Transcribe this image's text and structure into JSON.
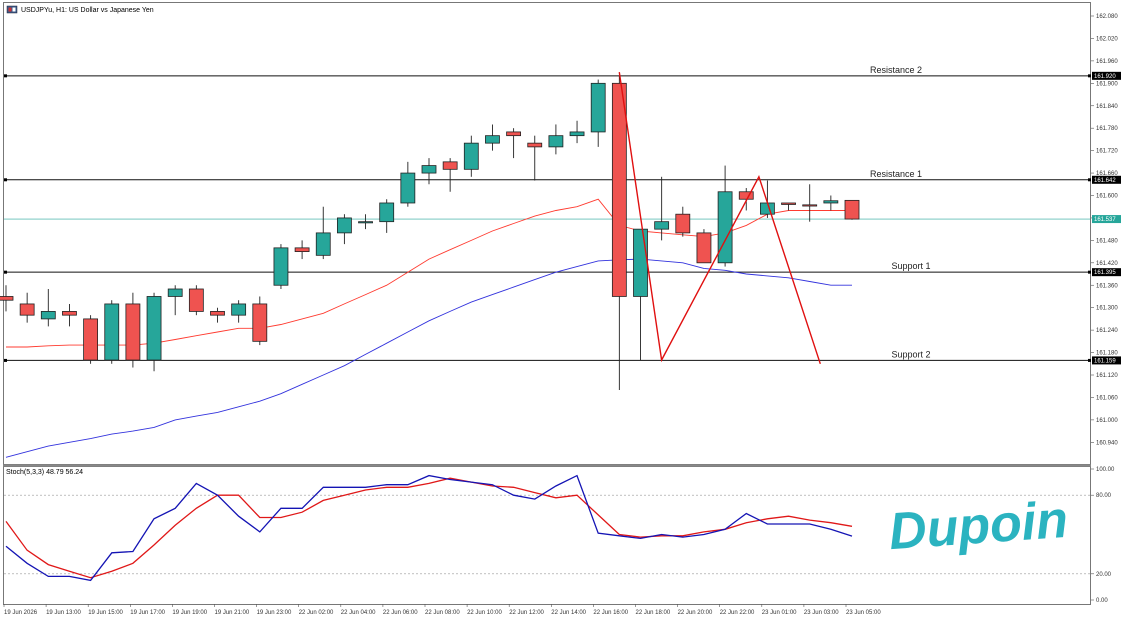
{
  "header": {
    "title": "USDJPYu, H1: US Dollar vs Japanese Yen"
  },
  "stoch": {
    "label": "Stoch(5,3,3) 48.79 56.24"
  },
  "logo": {
    "text": "Dupoin"
  },
  "colors": {
    "bull": "#26a69a",
    "bear": "#ef5350",
    "ma_fast": "#ff3b30",
    "ma_slow": "#3333dd",
    "stoch_main": "#1414b4",
    "stoch_signal": "#e01818",
    "zigzag": "#e01010",
    "logo": "#2bb3c0",
    "current_line": "#26a69a"
  },
  "chart_data": [
    {
      "type": "candlestick",
      "ylim": [
        160.88,
        162.108
      ],
      "price_ticks": [
        "162.080",
        "162.020",
        "161.960",
        "161.900",
        "161.840",
        "161.780",
        "161.720",
        "161.660",
        "161.600",
        "161.540",
        "161.480",
        "161.420",
        "161.360",
        "161.300",
        "161.240",
        "161.180",
        "161.120",
        "161.060",
        "161.000",
        "160.940"
      ],
      "x_labels": [
        "19 Jun 2026",
        "19 Jun 13:00",
        "19 Jun 15:00",
        "19 Jun 17:00",
        "19 Jun 19:00",
        "19 Jun 21:00",
        "19 Jun 23:00",
        "22 Jun 02:00",
        "22 Jun 04:00",
        "22 Jun 06:00",
        "22 Jun 08:00",
        "22 Jun 10:00",
        "22 Jun 12:00",
        "22 Jun 14:00",
        "22 Jun 16:00",
        "22 Jun 18:00",
        "22 Jun 20:00",
        "22 Jun 22:00",
        "23 Jun 01:00",
        "23 Jun 03:00",
        "23 Jun 05:00"
      ],
      "levels": [
        {
          "name": "Resistance 2",
          "price": 161.92,
          "tag": "161.920"
        },
        {
          "name": "Resistance 1",
          "price": 161.642,
          "tag": "161.642"
        },
        {
          "name": "Support 1",
          "price": 161.395,
          "tag": "161.395"
        },
        {
          "name": "Support 2",
          "price": 161.159,
          "tag": "161.159"
        }
      ],
      "current_price": {
        "value": 161.537,
        "tag": "161.537"
      },
      "candles": [
        {
          "o": 161.33,
          "h": 161.36,
          "l": 161.29,
          "c": 161.32
        },
        {
          "o": 161.31,
          "h": 161.34,
          "l": 161.26,
          "c": 161.28
        },
        {
          "o": 161.27,
          "h": 161.35,
          "l": 161.25,
          "c": 161.29
        },
        {
          "o": 161.29,
          "h": 161.31,
          "l": 161.25,
          "c": 161.28
        },
        {
          "o": 161.27,
          "h": 161.28,
          "l": 161.15,
          "c": 161.16
        },
        {
          "o": 161.16,
          "h": 161.32,
          "l": 161.15,
          "c": 161.31
        },
        {
          "o": 161.31,
          "h": 161.34,
          "l": 161.14,
          "c": 161.16
        },
        {
          "o": 161.16,
          "h": 161.34,
          "l": 161.13,
          "c": 161.33
        },
        {
          "o": 161.33,
          "h": 161.36,
          "l": 161.28,
          "c": 161.35
        },
        {
          "o": 161.35,
          "h": 161.36,
          "l": 161.28,
          "c": 161.29
        },
        {
          "o": 161.29,
          "h": 161.3,
          "l": 161.26,
          "c": 161.28
        },
        {
          "o": 161.28,
          "h": 161.32,
          "l": 161.26,
          "c": 161.31
        },
        {
          "o": 161.31,
          "h": 161.33,
          "l": 161.2,
          "c": 161.21
        },
        {
          "o": 161.36,
          "h": 161.47,
          "l": 161.35,
          "c": 161.46
        },
        {
          "o": 161.46,
          "h": 161.48,
          "l": 161.43,
          "c": 161.45
        },
        {
          "o": 161.44,
          "h": 161.57,
          "l": 161.43,
          "c": 161.5
        },
        {
          "o": 161.5,
          "h": 161.55,
          "l": 161.47,
          "c": 161.54
        },
        {
          "o": 161.53,
          "h": 161.55,
          "l": 161.51,
          "c": 161.53
        },
        {
          "o": 161.53,
          "h": 161.59,
          "l": 161.5,
          "c": 161.58
        },
        {
          "o": 161.58,
          "h": 161.69,
          "l": 161.57,
          "c": 161.66
        },
        {
          "o": 161.66,
          "h": 161.7,
          "l": 161.63,
          "c": 161.68
        },
        {
          "o": 161.69,
          "h": 161.7,
          "l": 161.61,
          "c": 161.67
        },
        {
          "o": 161.67,
          "h": 161.76,
          "l": 161.65,
          "c": 161.74
        },
        {
          "o": 161.74,
          "h": 161.79,
          "l": 161.72,
          "c": 161.76
        },
        {
          "o": 161.77,
          "h": 161.78,
          "l": 161.7,
          "c": 161.76
        },
        {
          "o": 161.74,
          "h": 161.76,
          "l": 161.64,
          "c": 161.73
        },
        {
          "o": 161.73,
          "h": 161.79,
          "l": 161.71,
          "c": 161.76
        },
        {
          "o": 161.76,
          "h": 161.8,
          "l": 161.74,
          "c": 161.77
        },
        {
          "o": 161.77,
          "h": 161.91,
          "l": 161.73,
          "c": 161.9
        },
        {
          "o": 161.9,
          "h": 161.92,
          "l": 161.08,
          "c": 161.33
        },
        {
          "o": 161.33,
          "h": 161.51,
          "l": 161.16,
          "c": 161.51
        },
        {
          "o": 161.51,
          "h": 161.65,
          "l": 161.48,
          "c": 161.53
        },
        {
          "o": 161.55,
          "h": 161.57,
          "l": 161.49,
          "c": 161.5
        },
        {
          "o": 161.5,
          "h": 161.51,
          "l": 161.42,
          "c": 161.42
        },
        {
          "o": 161.42,
          "h": 161.68,
          "l": 161.41,
          "c": 161.61
        },
        {
          "o": 161.61,
          "h": 161.62,
          "l": 161.56,
          "c": 161.59
        },
        {
          "o": 161.55,
          "h": 161.64,
          "l": 161.54,
          "c": 161.58
        },
        {
          "o": 161.58,
          "h": 161.58,
          "l": 161.56,
          "c": 161.576
        },
        {
          "o": 161.575,
          "h": 161.63,
          "l": 161.53,
          "c": 161.574
        },
        {
          "o": 161.58,
          "h": 161.6,
          "l": 161.56,
          "c": 161.586
        },
        {
          "o": 161.587,
          "h": 161.588,
          "l": 161.535,
          "c": 161.537
        }
      ],
      "ma_fast": [
        161.195,
        161.195,
        161.198,
        161.2,
        161.2,
        161.2,
        161.2,
        161.205,
        161.215,
        161.225,
        161.235,
        161.245,
        161.245,
        161.255,
        161.27,
        161.285,
        161.31,
        161.335,
        161.36,
        161.395,
        161.43,
        161.455,
        161.48,
        161.505,
        161.525,
        161.545,
        161.56,
        161.57,
        161.59,
        161.52,
        161.505,
        161.5,
        161.495,
        161.49,
        161.5,
        161.52,
        161.55,
        161.56,
        161.56,
        161.56,
        161.56
      ],
      "ma_slow": [
        160.9,
        160.915,
        160.93,
        160.94,
        160.95,
        160.962,
        160.97,
        160.98,
        161.0,
        161.01,
        161.02,
        161.035,
        161.05,
        161.07,
        161.095,
        161.12,
        161.145,
        161.175,
        161.205,
        161.235,
        161.265,
        161.29,
        161.315,
        161.335,
        161.355,
        161.375,
        161.395,
        161.41,
        161.425,
        161.428,
        161.43,
        161.425,
        161.42,
        161.405,
        161.4,
        161.39,
        161.385,
        161.38,
        161.37,
        161.36,
        161.36
      ],
      "zigzag": [
        {
          "i": 29,
          "p": 161.93
        },
        {
          "i": 31,
          "p": 161.16
        },
        {
          "i": 35.6,
          "p": 161.65
        },
        {
          "i": 38.5,
          "p": 161.15
        }
      ]
    },
    {
      "type": "line",
      "ylim": [
        0,
        100
      ],
      "y_ticks": [
        {
          "v": 100,
          "label": "100.00"
        },
        {
          "v": 80,
          "label": "80.00"
        },
        {
          "v": 20,
          "label": "20.00"
        },
        {
          "v": 0,
          "label": "0.00"
        }
      ],
      "levels": [
        80,
        20
      ],
      "series": [
        {
          "values": [
            41,
            28,
            18,
            18,
            15,
            36,
            37,
            62,
            70,
            89,
            80,
            64,
            52,
            70,
            70,
            86,
            86,
            86,
            88,
            88,
            95,
            92,
            90,
            88,
            80,
            77,
            87,
            95,
            51,
            49,
            47,
            50,
            48,
            50,
            54,
            66,
            58,
            58,
            58,
            54,
            48.79
          ]
        },
        {
          "values": [
            60,
            38,
            27,
            22,
            17,
            22,
            28,
            42,
            57,
            70,
            80,
            80,
            63,
            63,
            67,
            76,
            80,
            84,
            86,
            86,
            89,
            93,
            90,
            87,
            86,
            82,
            78,
            80,
            65,
            50,
            48,
            49,
            49,
            52,
            54,
            59,
            62,
            64,
            61,
            59,
            56.24
          ]
        }
      ]
    }
  ]
}
